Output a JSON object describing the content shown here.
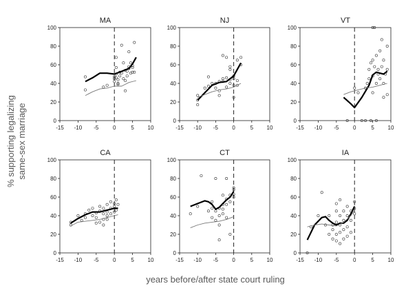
{
  "figure": {
    "ylabel_line1": "% supporting legalizing",
    "ylabel_line2": "same-sex marriage",
    "xlabel": "years before/after state court ruling"
  },
  "chart_data": [
    {
      "type": "scatter",
      "title": "MA",
      "xlim": [
        -15,
        10
      ],
      "ylim": [
        0,
        100
      ],
      "xticks": [
        -15,
        -10,
        -5,
        0,
        5,
        10
      ],
      "yticks": [
        0,
        20,
        40,
        60,
        80,
        100
      ],
      "points": [
        [
          -8,
          47
        ],
        [
          -8,
          33
        ],
        [
          -3,
          36
        ],
        [
          -2,
          38
        ],
        [
          0,
          42
        ],
        [
          0,
          45
        ],
        [
          0,
          47
        ],
        [
          0.5,
          68
        ],
        [
          0.5,
          57
        ],
        [
          0.5,
          50
        ],
        [
          0.5,
          46
        ],
        [
          1,
          44
        ],
        [
          1,
          40
        ],
        [
          1,
          39
        ],
        [
          1.5,
          48
        ],
        [
          1.5,
          52
        ],
        [
          2,
          51
        ],
        [
          2,
          81
        ],
        [
          2.5,
          62
        ],
        [
          2.5,
          45
        ],
        [
          3,
          54
        ],
        [
          3,
          32
        ],
        [
          3,
          43
        ],
        [
          3.5,
          48
        ],
        [
          3.5,
          53
        ],
        [
          4,
          58
        ],
        [
          4,
          74
        ],
        [
          4,
          56
        ],
        [
          4.5,
          51
        ],
        [
          5,
          52
        ],
        [
          5,
          59
        ],
        [
          5,
          57
        ],
        [
          5.5,
          84
        ],
        [
          5.5,
          52
        ],
        [
          4.5,
          62
        ]
      ],
      "series": [
        {
          "values": [
            [
              -8,
              42
            ],
            [
              -6,
              46
            ],
            [
              -4,
              51
            ],
            [
              -2,
              51
            ],
            [
              0,
              50
            ],
            [
              2,
              53
            ],
            [
              4,
              56
            ],
            [
              5,
              61
            ],
            [
              6,
              68
            ]
          ]
        },
        {
          "values": [
            [
              -8,
              27
            ],
            [
              -6,
              31
            ],
            [
              -4,
              34
            ],
            [
              -2,
              35
            ],
            [
              0,
              37
            ],
            [
              2,
              37
            ],
            [
              4,
              41
            ],
            [
              6,
              43
            ]
          ]
        }
      ]
    },
    {
      "type": "scatter",
      "title": "NJ",
      "xlim": [
        -15,
        10
      ],
      "ylim": [
        0,
        100
      ],
      "xticks": [
        -15,
        -10,
        -5,
        0,
        5,
        10
      ],
      "yticks": [
        0,
        20,
        40,
        60,
        80,
        100
      ],
      "points": [
        [
          -10,
          17
        ],
        [
          -10,
          22
        ],
        [
          -10,
          27
        ],
        [
          -8,
          35
        ],
        [
          -7,
          37
        ],
        [
          -7,
          47
        ],
        [
          -5,
          35
        ],
        [
          -5,
          40
        ],
        [
          -4,
          27
        ],
        [
          -4,
          32
        ],
        [
          -3,
          42
        ],
        [
          -3,
          70
        ],
        [
          -3,
          45
        ],
        [
          -2,
          36
        ],
        [
          -2,
          68
        ],
        [
          -2,
          46
        ],
        [
          -1,
          44
        ],
        [
          -1,
          55
        ],
        [
          -1,
          40
        ],
        [
          -1,
          58
        ],
        [
          0,
          25
        ],
        [
          0,
          38
        ],
        [
          0,
          45
        ],
        [
          0,
          48
        ],
        [
          1,
          65
        ],
        [
          1,
          43
        ],
        [
          1,
          38
        ],
        [
          2,
          60
        ],
        [
          2,
          68
        ],
        [
          -6,
          40
        ],
        [
          -4,
          42
        ]
      ],
      "series": [
        {
          "values": [
            [
              -10,
              22
            ],
            [
              -8,
              30
            ],
            [
              -6,
              38
            ],
            [
              -4,
              41
            ],
            [
              -2,
              42
            ],
            [
              0,
              48
            ],
            [
              1,
              55
            ],
            [
              2,
              62
            ]
          ]
        },
        {
          "values": [
            [
              -10,
              25
            ],
            [
              -8,
              28
            ],
            [
              -6,
              31
            ],
            [
              -4,
              33
            ],
            [
              -2,
              34
            ],
            [
              0,
              36
            ],
            [
              2,
              40
            ]
          ]
        }
      ]
    },
    {
      "type": "scatter",
      "title": "VT",
      "xlim": [
        -15,
        10
      ],
      "ylim": [
        0,
        100
      ],
      "xticks": [
        -15,
        -10,
        -5,
        0,
        5,
        10
      ],
      "yticks": [
        0,
        20,
        40,
        60,
        80,
        100
      ],
      "points": [
        [
          -2,
          0
        ],
        [
          0,
          35
        ],
        [
          1,
          30
        ],
        [
          2,
          0
        ],
        [
          3,
          0
        ],
        [
          3,
          35
        ],
        [
          4,
          45
        ],
        [
          4,
          55
        ],
        [
          4.5,
          0
        ],
        [
          5,
          100
        ],
        [
          5,
          65
        ],
        [
          5,
          48
        ],
        [
          5,
          30
        ],
        [
          5.5,
          100
        ],
        [
          5.5,
          58
        ],
        [
          6,
          70
        ],
        [
          6,
          40
        ],
        [
          6,
          0
        ],
        [
          6.5,
          55
        ],
        [
          6.5,
          50
        ],
        [
          7,
          75
        ],
        [
          7,
          45
        ],
        [
          7.5,
          87
        ],
        [
          7.5,
          58
        ],
        [
          8,
          65
        ],
        [
          8,
          40
        ],
        [
          8,
          25
        ],
        [
          8.5,
          50
        ],
        [
          9,
          80
        ],
        [
          9,
          55
        ],
        [
          9,
          28
        ],
        [
          3.5,
          40
        ],
        [
          4.5,
          62
        ]
      ],
      "series": [
        {
          "values": [
            [
              -3,
              25
            ],
            [
              -1,
              18
            ],
            [
              0,
              14
            ],
            [
              2,
              25
            ],
            [
              4,
              38
            ],
            [
              5,
              49
            ],
            [
              6,
              52
            ],
            [
              7,
              51
            ],
            [
              8,
              50
            ],
            [
              9,
              53
            ]
          ]
        },
        {
          "values": [
            [
              -3,
              28
            ],
            [
              -1,
              31
            ],
            [
              1,
              33
            ],
            [
              3,
              35
            ],
            [
              5,
              36
            ],
            [
              7,
              38
            ],
            [
              9,
              40
            ]
          ]
        }
      ]
    },
    {
      "type": "scatter",
      "title": "CA",
      "xlim": [
        -15,
        10
      ],
      "ylim": [
        0,
        100
      ],
      "xticks": [
        -15,
        -10,
        -5,
        0,
        5,
        10
      ],
      "yticks": [
        0,
        20,
        40,
        60,
        80,
        100
      ],
      "points": [
        [
          -12,
          30
        ],
        [
          -12,
          33
        ],
        [
          -10,
          40
        ],
        [
          -9,
          35
        ],
        [
          -8,
          42
        ],
        [
          -8,
          38
        ],
        [
          -7,
          46
        ],
        [
          -6,
          48
        ],
        [
          -6,
          40
        ],
        [
          -5,
          43
        ],
        [
          -5,
          38
        ],
        [
          -4,
          45
        ],
        [
          -4,
          33
        ],
        [
          -4,
          50
        ],
        [
          -3,
          48
        ],
        [
          -3,
          42
        ],
        [
          -3,
          36
        ],
        [
          -3,
          30
        ],
        [
          -2,
          52
        ],
        [
          -2,
          44
        ],
        [
          -2,
          40
        ],
        [
          -1,
          48
        ],
        [
          -1,
          55
        ],
        [
          -1,
          42
        ],
        [
          0,
          50
        ],
        [
          0,
          44
        ],
        [
          0,
          53
        ],
        [
          0.5,
          57
        ],
        [
          0.5,
          46
        ],
        [
          1,
          52
        ],
        [
          -5,
          32
        ],
        [
          -2,
          36
        ]
      ],
      "series": [
        {
          "values": [
            [
              -12,
              32
            ],
            [
              -10,
              37
            ],
            [
              -8,
              41
            ],
            [
              -6,
              44
            ],
            [
              -4,
              44
            ],
            [
              -2,
              46
            ],
            [
              -1,
              47
            ],
            [
              0,
              48
            ],
            [
              1,
              48
            ]
          ]
        },
        {
          "values": [
            [
              -12,
              29
            ],
            [
              -10,
              33
            ],
            [
              -8,
              34
            ],
            [
              -6,
              35
            ],
            [
              -4,
              36
            ],
            [
              -2,
              38
            ],
            [
              0,
              40
            ],
            [
              1,
              41
            ]
          ]
        }
      ]
    },
    {
      "type": "scatter",
      "title": "CT",
      "xlim": [
        -15,
        10
      ],
      "ylim": [
        0,
        100
      ],
      "xticks": [
        -15,
        -10,
        -5,
        0,
        5,
        10
      ],
      "yticks": [
        0,
        20,
        40,
        60,
        80,
        100
      ],
      "points": [
        [
          -12,
          42
        ],
        [
          -10,
          50
        ],
        [
          -9,
          83
        ],
        [
          -7,
          45
        ],
        [
          -6,
          48
        ],
        [
          -6,
          38
        ],
        [
          -5,
          35
        ],
        [
          -5,
          45
        ],
        [
          -4,
          40
        ],
        [
          -4,
          30
        ],
        [
          -4,
          14
        ],
        [
          -3,
          52
        ],
        [
          -3,
          62
        ],
        [
          -3,
          47
        ],
        [
          -2,
          80
        ],
        [
          -2,
          58
        ],
        [
          -2,
          52
        ],
        [
          -1,
          55
        ],
        [
          -1,
          62
        ],
        [
          -1,
          20
        ],
        [
          0,
          60
        ],
        [
          0,
          68
        ],
        [
          0,
          70
        ],
        [
          0,
          63
        ],
        [
          -5,
          80
        ],
        [
          -4,
          48
        ],
        [
          -3,
          42
        ],
        [
          -2,
          38
        ],
        [
          -6,
          55
        ]
      ],
      "series": [
        {
          "values": [
            [
              -12,
              50
            ],
            [
              -10,
              53
            ],
            [
              -8,
              56
            ],
            [
              -7,
              55
            ],
            [
              -6,
              52
            ],
            [
              -5,
              47
            ],
            [
              -4,
              49
            ],
            [
              -3,
              53
            ],
            [
              -2,
              57
            ],
            [
              -1,
              60
            ],
            [
              0,
              66
            ]
          ]
        },
        {
          "values": [
            [
              -12,
              27
            ],
            [
              -10,
              30
            ],
            [
              -8,
              32
            ],
            [
              -6,
              33
            ],
            [
              -4,
              34
            ],
            [
              -2,
              36
            ],
            [
              0,
              39
            ]
          ]
        }
      ]
    },
    {
      "type": "scatter",
      "title": "IA",
      "xlim": [
        -15,
        10
      ],
      "ylim": [
        0,
        100
      ],
      "xticks": [
        -15,
        -10,
        -5,
        0,
        5,
        10
      ],
      "yticks": [
        0,
        20,
        40,
        60,
        80,
        100
      ],
      "points": [
        [
          -13,
          0
        ],
        [
          -12,
          28
        ],
        [
          -10,
          40
        ],
        [
          -9,
          65
        ],
        [
          -8,
          30
        ],
        [
          -7,
          40
        ],
        [
          -6,
          30
        ],
        [
          -6,
          25
        ],
        [
          -5,
          53
        ],
        [
          -5,
          45
        ],
        [
          -5,
          33
        ],
        [
          -5,
          20
        ],
        [
          -5,
          13
        ],
        [
          -4,
          57
        ],
        [
          -4,
          40
        ],
        [
          -4,
          30
        ],
        [
          -4,
          22
        ],
        [
          -4,
          10
        ],
        [
          -3,
          45
        ],
        [
          -3,
          35
        ],
        [
          -3,
          25
        ],
        [
          -3,
          15
        ],
        [
          -2,
          50
        ],
        [
          -2,
          40
        ],
        [
          -2,
          28
        ],
        [
          -2,
          18
        ],
        [
          -1,
          45
        ],
        [
          -1,
          35
        ],
        [
          -1,
          22
        ],
        [
          0,
          55
        ],
        [
          0,
          48
        ],
        [
          0,
          42
        ],
        [
          -6,
          15
        ],
        [
          -7,
          20
        ]
      ],
      "series": [
        {
          "values": [
            [
              -13,
              14
            ],
            [
              -11,
              30
            ],
            [
              -9,
              38
            ],
            [
              -8,
              39
            ],
            [
              -7,
              35
            ],
            [
              -6,
              32
            ],
            [
              -5,
              30
            ],
            [
              -4,
              32
            ],
            [
              -3,
              32
            ],
            [
              -2,
              35
            ],
            [
              -1,
              42
            ],
            [
              0,
              50
            ]
          ]
        },
        {
          "values": [
            [
              -13,
              28
            ],
            [
              -11,
              30
            ],
            [
              -9,
              31
            ],
            [
              -7,
              30
            ],
            [
              -5,
              29
            ],
            [
              -3,
              33
            ],
            [
              -1,
              40
            ],
            [
              0,
              46
            ]
          ]
        }
      ]
    }
  ]
}
